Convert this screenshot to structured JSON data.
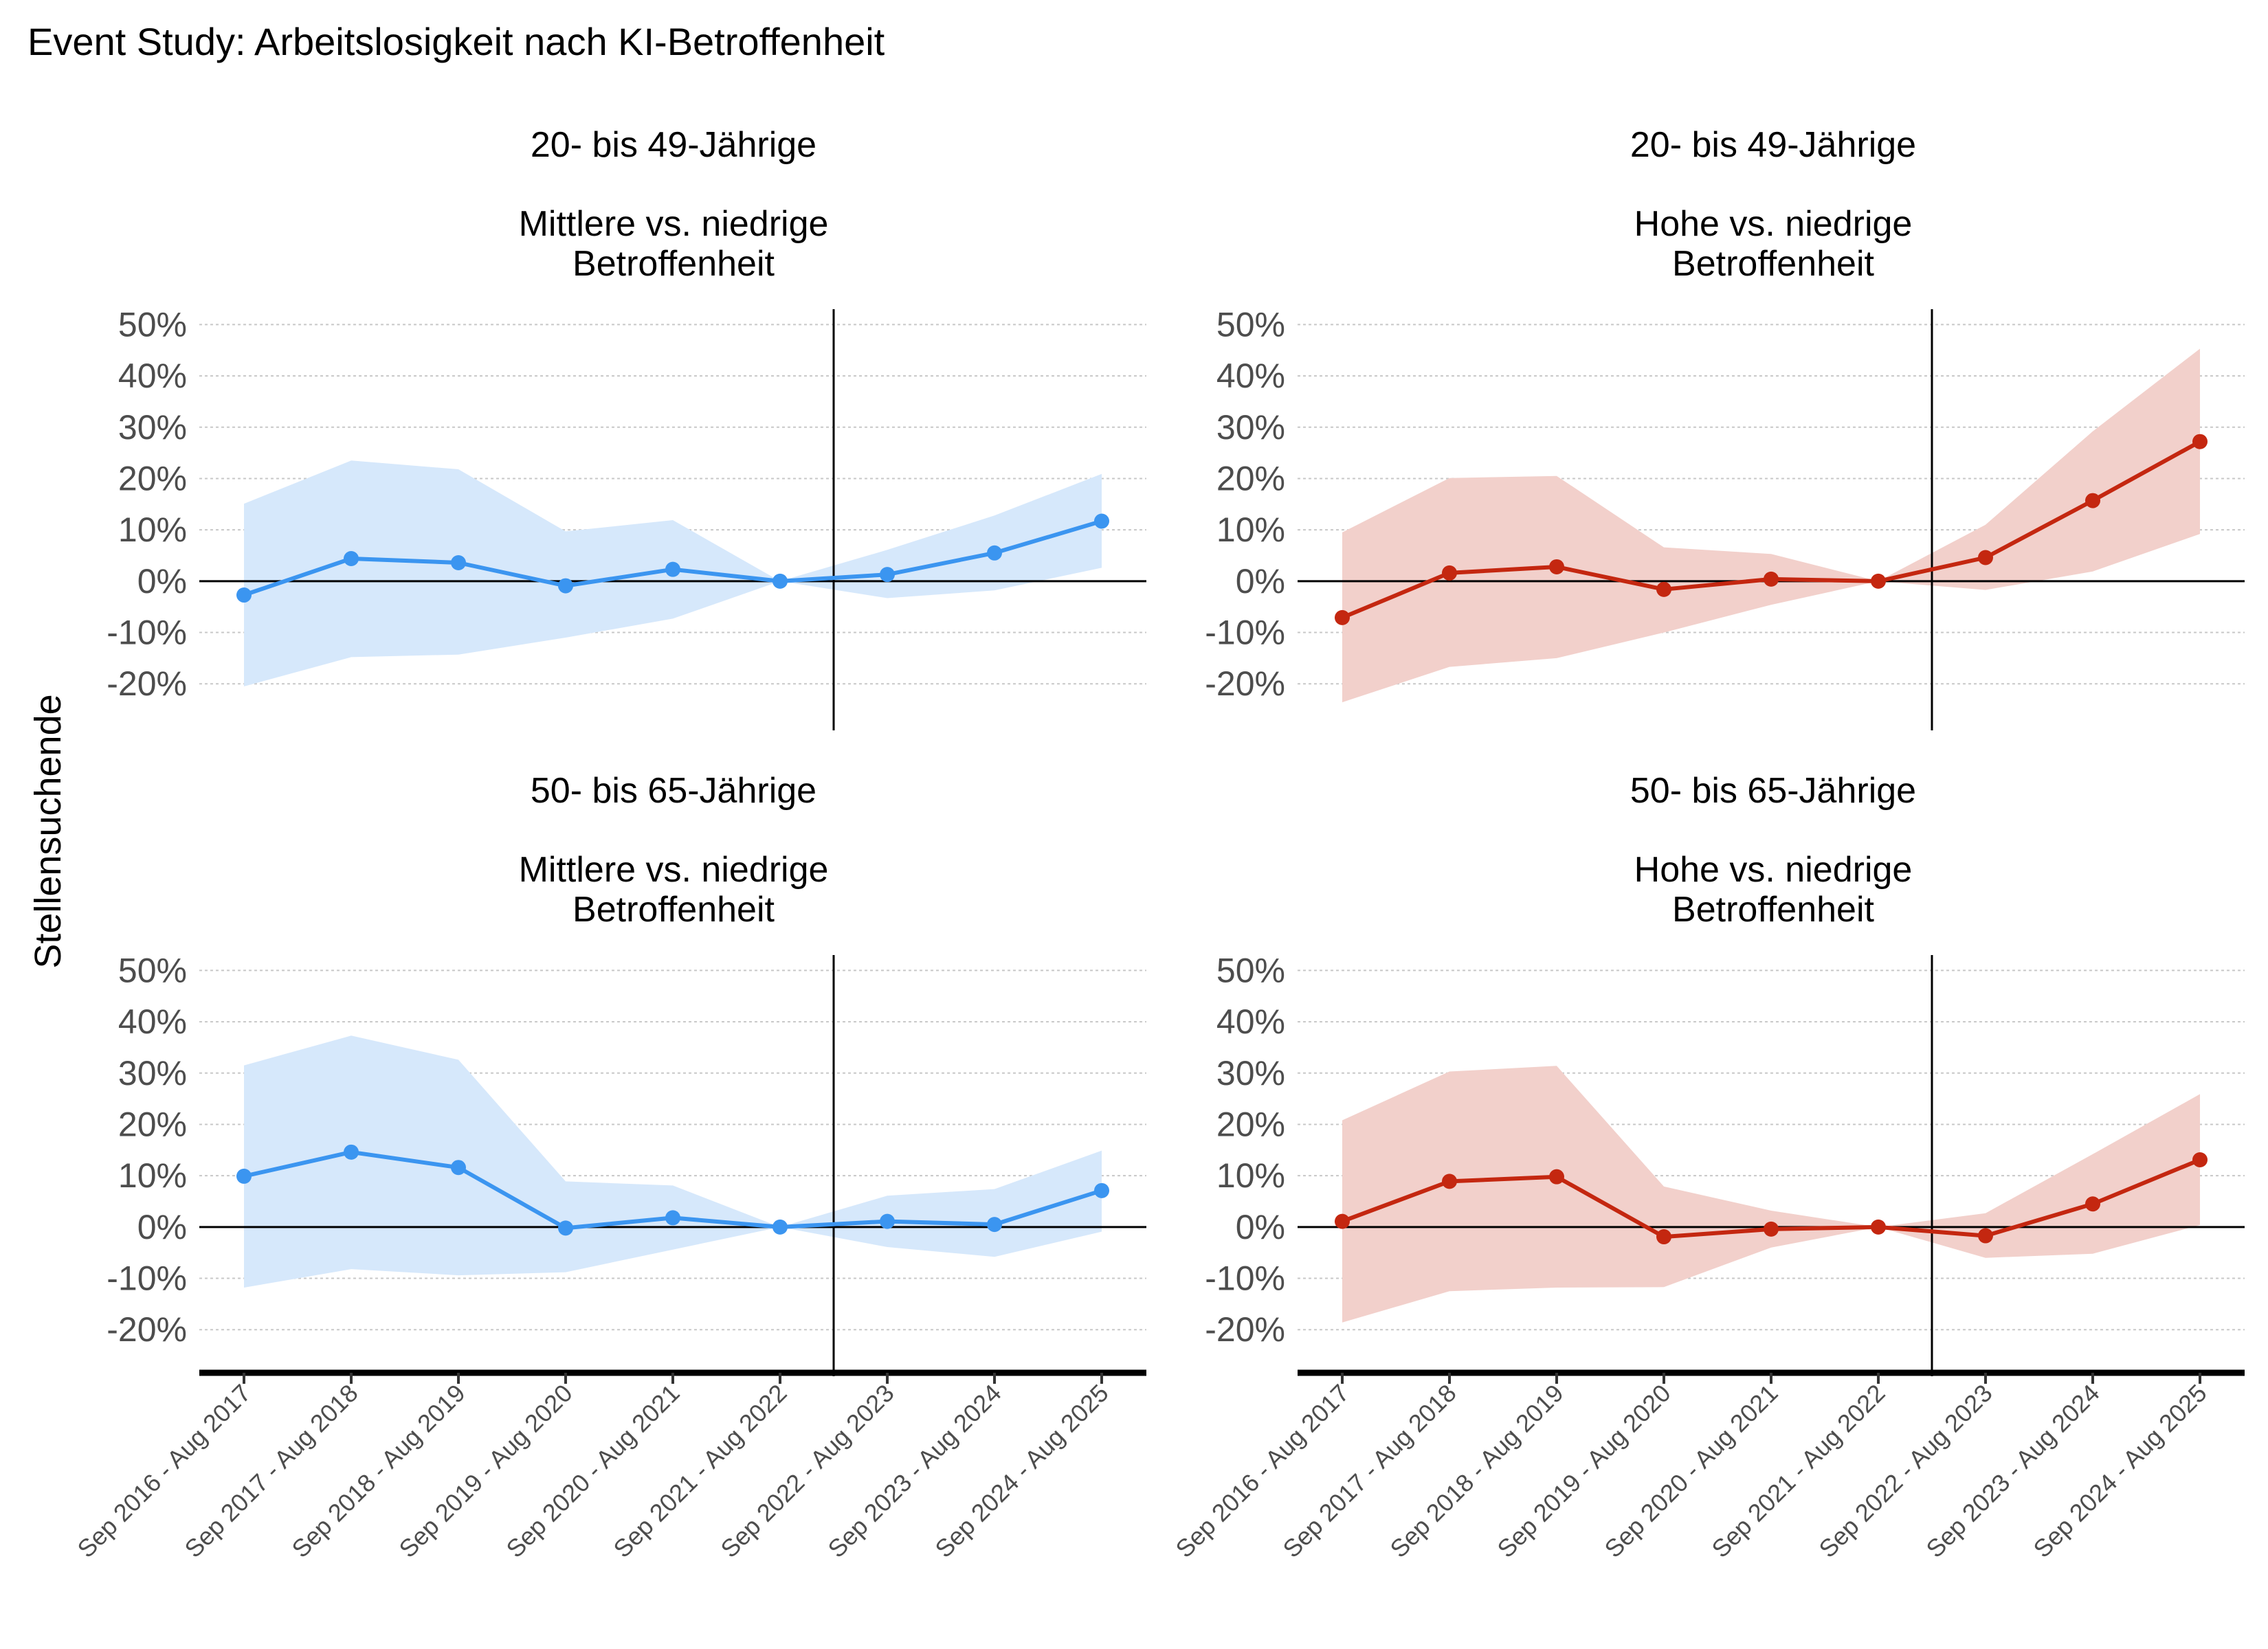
{
  "title": "Event Study: Arbeitslosigkeit nach KI-Betroffenheit",
  "ylabel": "Stellensuchende",
  "colors": {
    "blue": "#3b95f0",
    "blue_band": "#d6e8fb",
    "red": "#c42710",
    "red_band": "#f2d0cb"
  },
  "chart_data": [
    {
      "type": "line",
      "strip_top": "20- bis 49-Jährige",
      "strip_bottom": [
        "Mittlere vs. niedrige",
        "Betroffenheit"
      ],
      "color": "blue",
      "categories": [
        "Sep 2016 - Aug 2017",
        "Sep 2017 - Aug 2018",
        "Sep 2018 - Aug 2019",
        "Sep 2019 - Aug 2020",
        "Sep 2020 - Aug 2021",
        "Sep 2021 - Aug 2022",
        "Sep 2022 - Aug 2023",
        "Sep 2023 - Aug 2024",
        "Sep 2024 - Aug 2025"
      ],
      "values": [
        -2.7,
        4.4,
        3.6,
        -0.9,
        2.3,
        0.0,
        1.3,
        5.5,
        11.7
      ],
      "lower": [
        -20.5,
        -14.8,
        -14.3,
        -11.0,
        -7.3,
        0.0,
        -3.3,
        -1.8,
        2.6
      ],
      "upper": [
        15.1,
        23.5,
        21.8,
        9.7,
        11.9,
        0.0,
        6.1,
        12.8,
        20.9
      ],
      "yticks": [
        "50%",
        "40%",
        "30%",
        "20%",
        "10%",
        "0%",
        "-10%",
        "-20%"
      ],
      "ylim": [
        -28,
        53
      ],
      "vline_after": "Sep 2021 - Aug 2022"
    },
    {
      "type": "line",
      "strip_top": "20- bis 49-Jährige",
      "strip_bottom": [
        "Hohe vs. niedrige",
        "Betroffenheit"
      ],
      "color": "red",
      "categories": [
        "Sep 2016 - Aug 2017",
        "Sep 2017 - Aug 2018",
        "Sep 2018 - Aug 2019",
        "Sep 2019 - Aug 2020",
        "Sep 2020 - Aug 2021",
        "Sep 2021 - Aug 2022",
        "Sep 2022 - Aug 2023",
        "Sep 2023 - Aug 2024",
        "Sep 2024 - Aug 2025"
      ],
      "values": [
        -7.1,
        1.6,
        2.8,
        -1.6,
        0.4,
        0.0,
        4.6,
        15.7,
        27.2
      ],
      "lower": [
        -23.6,
        -16.7,
        -15.0,
        -10.0,
        -4.6,
        0.0,
        -1.7,
        1.9,
        9.2
      ],
      "upper": [
        9.5,
        20.1,
        20.5,
        6.6,
        5.3,
        0.0,
        11.0,
        29.2,
        45.3
      ],
      "yticks": [
        "50%",
        "40%",
        "30%",
        "20%",
        "10%",
        "0%",
        "-10%",
        "-20%"
      ],
      "ylim": [
        -28,
        53
      ],
      "vline_after": "Sep 2021 - Aug 2022"
    },
    {
      "type": "line",
      "strip_top": "50- bis 65-Jährige",
      "strip_bottom": [
        "Mittlere vs. niedrige",
        "Betroffenheit"
      ],
      "color": "blue",
      "categories": [
        "Sep 2016 - Aug 2017",
        "Sep 2017 - Aug 2018",
        "Sep 2018 - Aug 2019",
        "Sep 2019 - Aug 2020",
        "Sep 2020 - Aug 2021",
        "Sep 2021 - Aug 2022",
        "Sep 2022 - Aug 2023",
        "Sep 2023 - Aug 2024",
        "Sep 2024 - Aug 2025"
      ],
      "values": [
        9.9,
        14.6,
        11.6,
        -0.2,
        1.8,
        0.0,
        1.1,
        0.5,
        7.1
      ],
      "lower": [
        -11.8,
        -8.2,
        -9.4,
        -8.8,
        -4.4,
        0.0,
        -3.9,
        -5.8,
        -0.9
      ],
      "upper": [
        31.5,
        37.3,
        32.6,
        8.9,
        8.1,
        0.0,
        6.1,
        7.4,
        14.9
      ],
      "yticks": [
        "50%",
        "40%",
        "30%",
        "20%",
        "10%",
        "0%",
        "-10%",
        "-20%"
      ],
      "ylim": [
        -28,
        53
      ],
      "vline_after": "Sep 2021 - Aug 2022"
    },
    {
      "type": "line",
      "strip_top": "50- bis 65-Jährige",
      "strip_bottom": [
        "Hohe vs. niedrige",
        "Betroffenheit"
      ],
      "color": "red",
      "categories": [
        "Sep 2016 - Aug 2017",
        "Sep 2017 - Aug 2018",
        "Sep 2018 - Aug 2019",
        "Sep 2019 - Aug 2020",
        "Sep 2020 - Aug 2021",
        "Sep 2021 - Aug 2022",
        "Sep 2022 - Aug 2023",
        "Sep 2023 - Aug 2024",
        "Sep 2024 - Aug 2025"
      ],
      "values": [
        1.1,
        8.9,
        9.8,
        -1.9,
        -0.4,
        0.0,
        -1.7,
        4.5,
        13.1
      ],
      "lower": [
        -18.6,
        -12.5,
        -11.8,
        -11.7,
        -4.0,
        0.0,
        -6.0,
        -5.2,
        0.4
      ],
      "upper": [
        20.8,
        30.3,
        31.4,
        7.9,
        3.2,
        0.0,
        2.7,
        14.2,
        25.9
      ],
      "yticks": [
        "50%",
        "40%",
        "30%",
        "20%",
        "10%",
        "0%",
        "-10%",
        "-20%"
      ],
      "ylim": [
        -28,
        53
      ],
      "vline_after": "Sep 2021 - Aug 2022"
    }
  ]
}
